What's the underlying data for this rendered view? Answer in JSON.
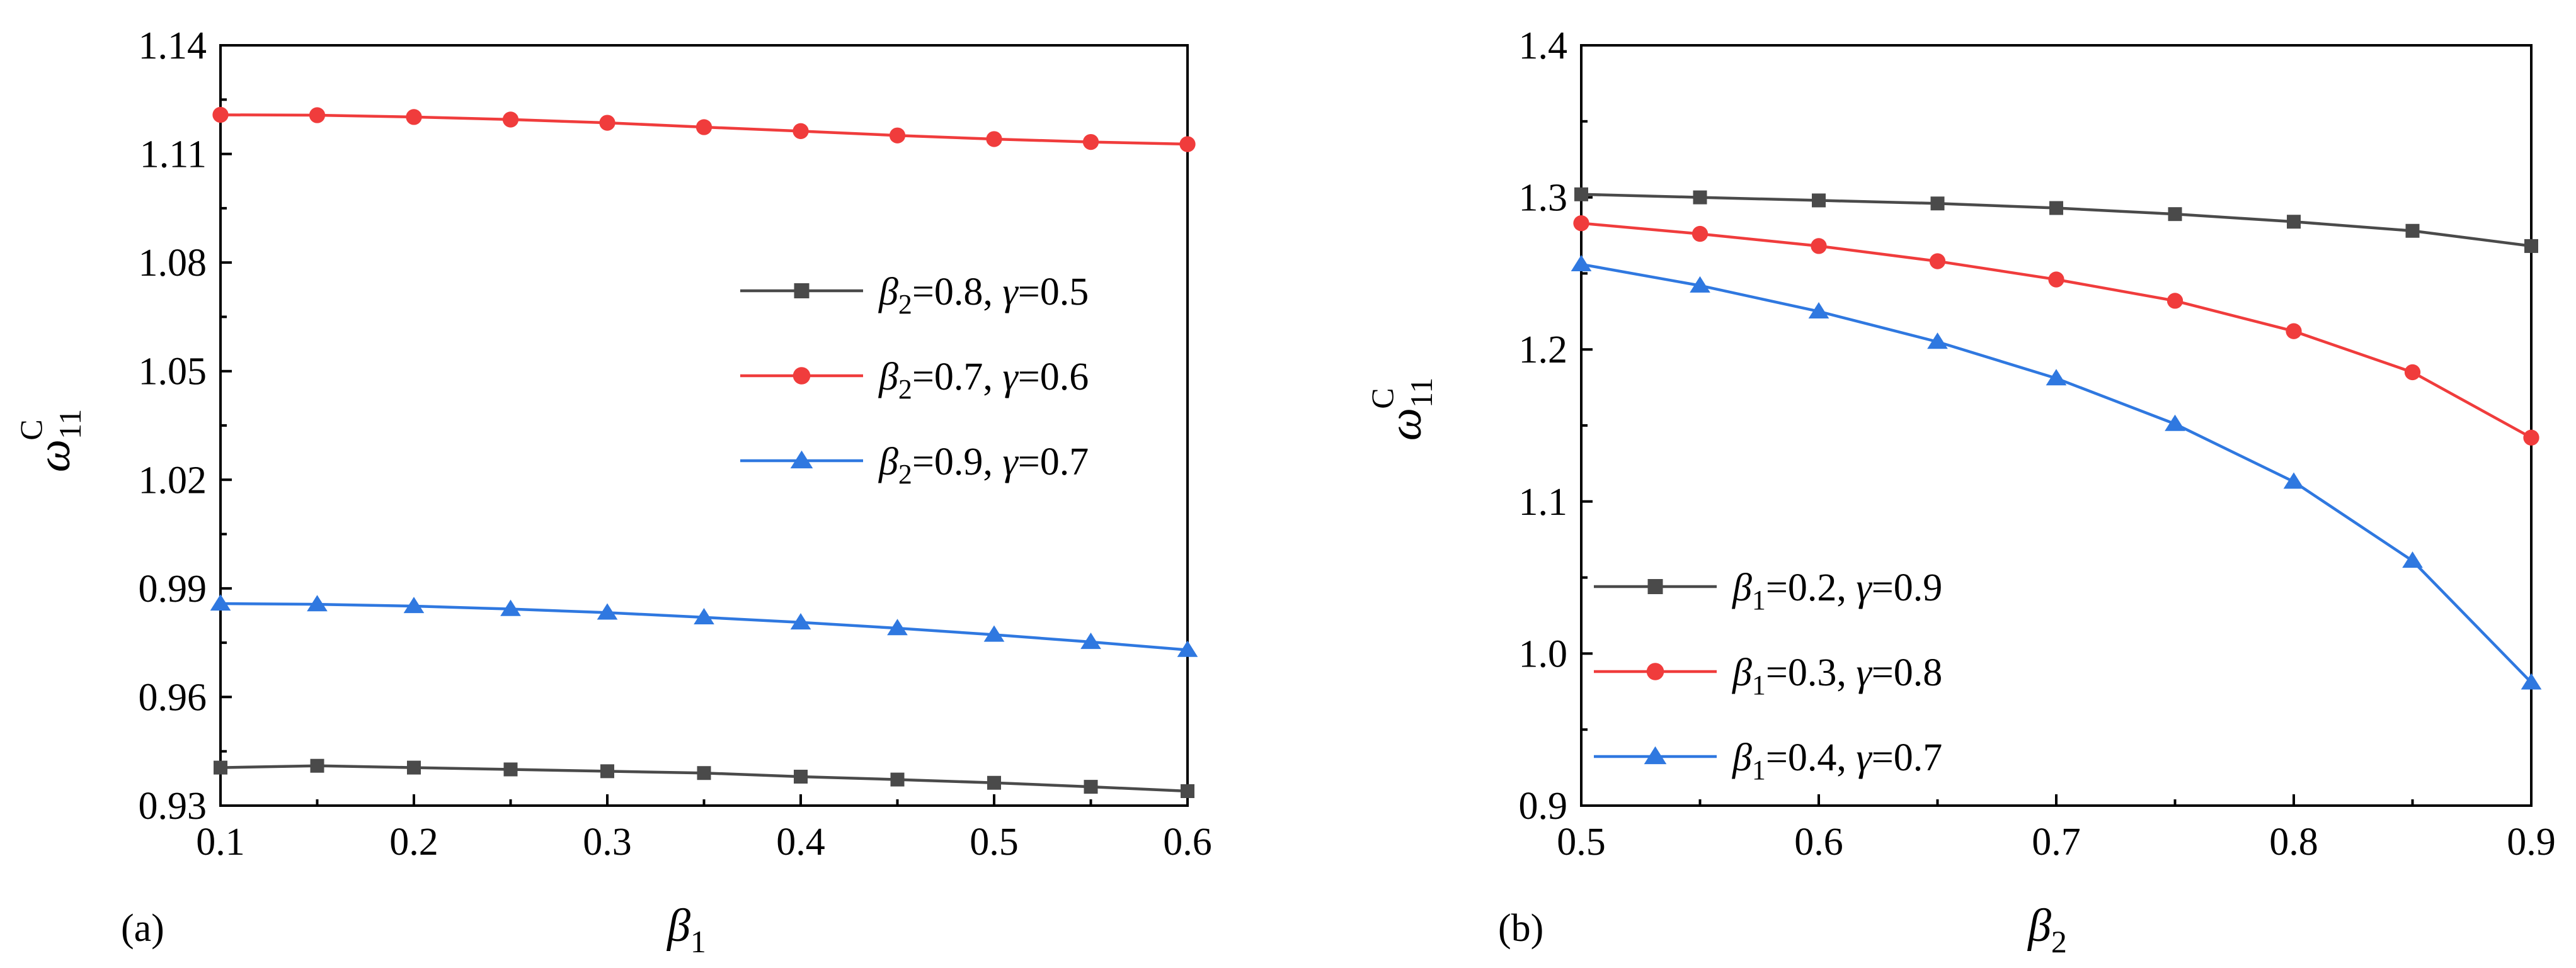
{
  "figure": {
    "background": "#ffffff",
    "series_colors": {
      "black": "#4a4a4a",
      "red": "#f03c3c",
      "blue": "#2f78e0"
    }
  },
  "chart_data": [
    {
      "type": "line",
      "panel_label": "(a)",
      "x_symbol": "β",
      "x_subscript": "1",
      "y_symbol": "ω",
      "y_subscript": "11",
      "y_superscript": "C",
      "xlim": [
        0.1,
        0.6
      ],
      "ylim": [
        0.93,
        1.14
      ],
      "x_ticks": [
        0.1,
        0.2,
        0.3,
        0.4,
        0.5,
        0.6
      ],
      "x_tick_labels": [
        "0.1",
        "0.2",
        "0.3",
        "0.4",
        "0.5",
        "0.6"
      ],
      "y_ticks": [
        0.93,
        0.96,
        0.99,
        1.02,
        1.05,
        1.08,
        1.11,
        1.14
      ],
      "y_tick_labels": [
        "0.93",
        "0.96",
        "0.99",
        "1.02",
        "1.05",
        "1.08",
        "1.11",
        "1.14"
      ],
      "legend_position": "center-right",
      "x": [
        0.1,
        0.15,
        0.2,
        0.25,
        0.3,
        0.35,
        0.4,
        0.45,
        0.5,
        0.55,
        0.6
      ],
      "series": [
        {
          "name": "β2=0.8, γ=0.5",
          "marker": "square",
          "color": "#4a4a4a",
          "legend_parts": [
            "β",
            "2",
            "=0.8, ",
            "γ",
            "=0.5"
          ],
          "values": [
            0.9405,
            0.941,
            0.9405,
            0.94,
            0.9395,
            0.939,
            0.938,
            0.9372,
            0.9363,
            0.9352,
            0.934
          ]
        },
        {
          "name": "β2=0.7, γ=0.6",
          "marker": "circle",
          "color": "#f03c3c",
          "legend_parts": [
            "β",
            "2",
            "=0.7, ",
            "γ",
            "=0.6"
          ],
          "values": [
            1.1208,
            1.1207,
            1.1202,
            1.1195,
            1.1186,
            1.1174,
            1.1163,
            1.1151,
            1.1141,
            1.1133,
            1.1127
          ]
        },
        {
          "name": "β2=0.9, γ=0.7",
          "marker": "triangle",
          "color": "#2f78e0",
          "legend_parts": [
            "β",
            "2",
            "=0.9, ",
            "γ",
            "=0.7"
          ],
          "values": [
            0.9858,
            0.9856,
            0.9851,
            0.9843,
            0.9833,
            0.982,
            0.9806,
            0.979,
            0.9772,
            0.9752,
            0.973
          ]
        }
      ]
    },
    {
      "type": "line",
      "panel_label": "(b)",
      "x_symbol": "β",
      "x_subscript": "2",
      "y_symbol": "ω",
      "y_subscript": "11",
      "y_superscript": "C",
      "xlim": [
        0.5,
        0.9
      ],
      "ylim": [
        0.9,
        1.4
      ],
      "x_ticks": [
        0.5,
        0.6,
        0.7,
        0.8,
        0.9
      ],
      "x_tick_labels": [
        "0.5",
        "0.6",
        "0.7",
        "0.8",
        "0.9"
      ],
      "y_ticks": [
        0.9,
        1.0,
        1.1,
        1.2,
        1.3,
        1.4
      ],
      "y_tick_labels": [
        "0.9",
        "1.0",
        "1.1",
        "1.2",
        "1.3",
        "1.4"
      ],
      "legend_position": "bottom-left",
      "x": [
        0.5,
        0.55,
        0.6,
        0.65,
        0.7,
        0.75,
        0.8,
        0.85,
        0.9
      ],
      "series": [
        {
          "name": "β1=0.2, γ=0.9",
          "marker": "square",
          "color": "#4a4a4a",
          "legend_parts": [
            "β",
            "1",
            "=0.2, ",
            "γ",
            "=0.9"
          ],
          "values": [
            1.302,
            1.3,
            1.298,
            1.296,
            1.293,
            1.289,
            1.284,
            1.278,
            1.268
          ]
        },
        {
          "name": "β1=0.3, γ=0.8",
          "marker": "circle",
          "color": "#f03c3c",
          "legend_parts": [
            "β",
            "1",
            "=0.3, ",
            "γ",
            "=0.8"
          ],
          "values": [
            1.283,
            1.276,
            1.268,
            1.258,
            1.246,
            1.232,
            1.212,
            1.185,
            1.142
          ]
        },
        {
          "name": "β1=0.4, γ=0.7",
          "marker": "triangle",
          "color": "#2f78e0",
          "legend_parts": [
            "β",
            "1",
            "=0.4, ",
            "γ",
            "=0.7"
          ],
          "values": [
            1.256,
            1.242,
            1.225,
            1.205,
            1.181,
            1.151,
            1.113,
            1.061,
            0.981
          ]
        }
      ]
    }
  ]
}
